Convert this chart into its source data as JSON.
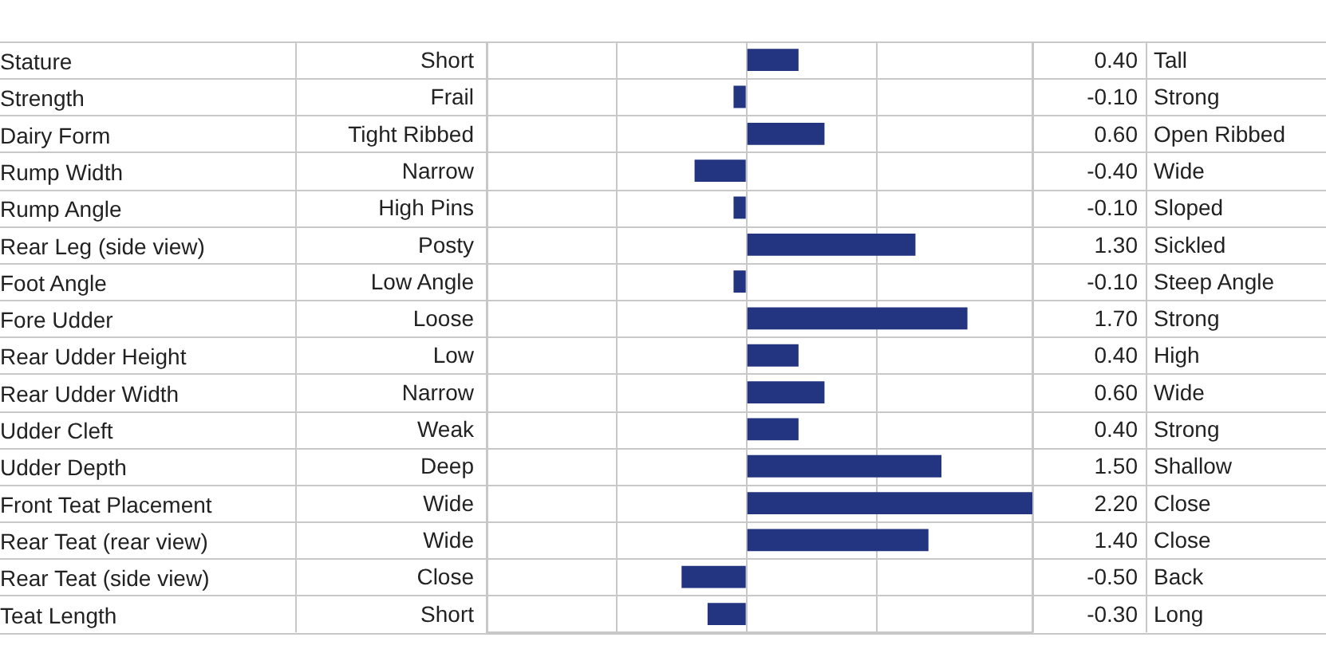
{
  "chart_data": {
    "type": "bar",
    "orientation": "horizontal",
    "categories": [
      "Stature",
      "Strength",
      "Dairy Form",
      "Rump Width",
      "Rump Angle",
      "Rear Leg (side view)",
      "Foot Angle",
      "Fore Udder",
      "Rear Udder Height",
      "Rear Udder Width",
      "Udder Cleft",
      "Udder Depth",
      "Front Teat Placement",
      "Rear Teat (rear view)",
      "Rear Teat (side view)",
      "Teat Length"
    ],
    "values": [
      0.4,
      -0.1,
      0.6,
      -0.4,
      -0.1,
      1.3,
      -0.1,
      1.7,
      0.4,
      0.6,
      0.4,
      1.5,
      2.2,
      1.4,
      -0.5,
      -0.3
    ],
    "value_labels": [
      "0.40",
      "-0.10",
      "0.60",
      "-0.40",
      "-0.10",
      "1.30",
      "-0.10",
      "1.70",
      "0.40",
      "0.60",
      "0.40",
      "1.50",
      "2.20",
      "1.40",
      "-0.50",
      "-0.30"
    ],
    "color": "#233580",
    "xlim": [
      -2,
      2.2
    ],
    "tick_labels": "y",
    "grid": "x",
    "legend": false,
    "annotations": [
      "Short",
      "Frail",
      "Tight Ribbed",
      "Narrow",
      "High Pins",
      "Posty",
      "Low Angle",
      "Loose",
      "Low",
      "Narrow",
      "Weak",
      "Deep",
      "Wide",
      "Wide",
      "Close",
      "Short",
      "Tall",
      "Strong",
      "Open Ribbed",
      "Wide",
      "Sloped",
      "Sickled",
      "Steep Angle",
      "Strong",
      "High",
      "Wide",
      "Strong",
      "Shallow",
      "Close",
      "Close",
      "Back",
      "Long"
    ]
  }
}
